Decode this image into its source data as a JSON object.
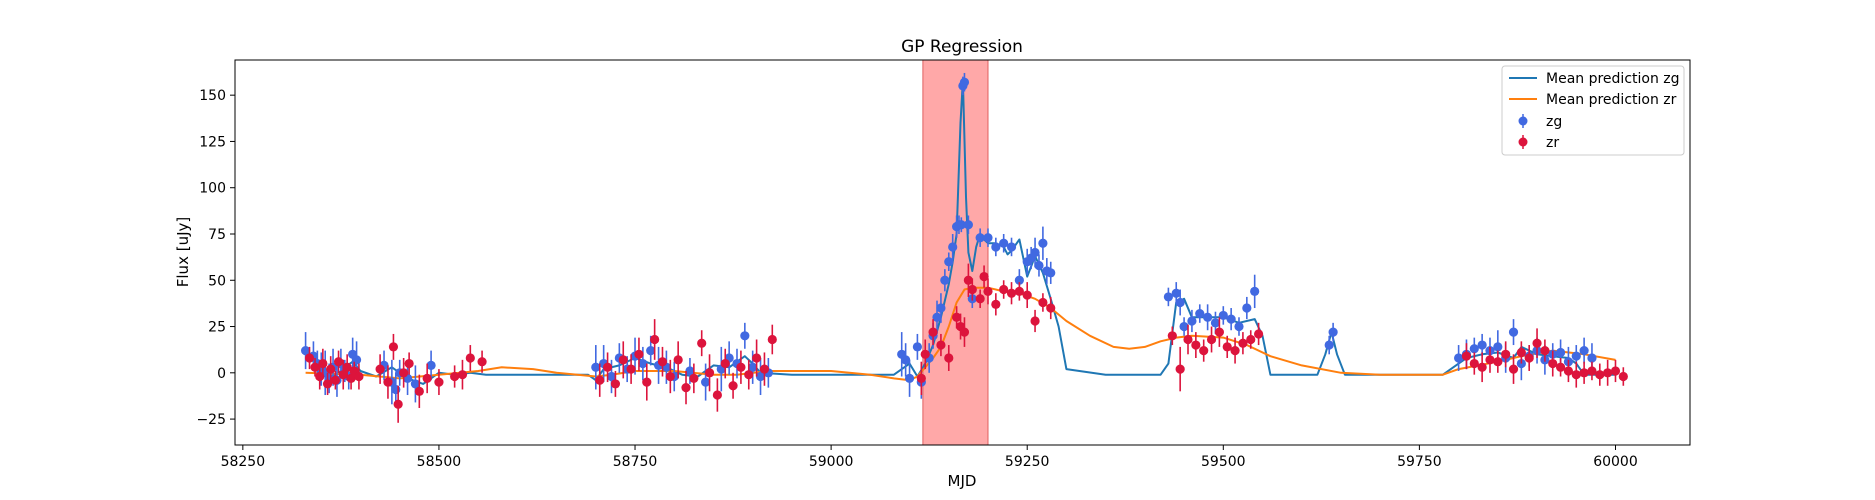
{
  "chart_data": {
    "type": "scatter",
    "title": "GP Regression",
    "xlabel": "MJD",
    "ylabel": "Flux [uJy]",
    "xlim": [
      58240,
      60095
    ],
    "ylim": [
      -39,
      169
    ],
    "xticks": [
      58250,
      58500,
      58750,
      59000,
      59250,
      59500,
      59750,
      60000
    ],
    "yticks": [
      -25,
      0,
      25,
      50,
      75,
      100,
      125,
      150
    ],
    "grid": false,
    "legend_position": "top-right",
    "highlight_span": {
      "x0": 59117,
      "x1": 59200,
      "color": "#ffa8a8"
    },
    "legend": [
      {
        "label": "Mean prediction zg",
        "kind": "line",
        "color": "#1f77b4"
      },
      {
        "label": "Mean prediction zr",
        "kind": "line",
        "color": "#ff7f0e"
      },
      {
        "label": "zg",
        "kind": "errorbar",
        "color": "#4169e1"
      },
      {
        "label": "zr",
        "kind": "errorbar",
        "color": "#dc143c"
      }
    ],
    "series": [
      {
        "name": "Mean prediction zg",
        "kind": "line",
        "color": "#1f77b4",
        "x": [
          58330,
          58340,
          58350,
          58360,
          58370,
          58380,
          58390,
          58400,
          58420,
          58440,
          58460,
          58480,
          58500,
          58520,
          58540,
          58560,
          58600,
          58650,
          58690,
          58700,
          58710,
          58730,
          58750,
          58770,
          58790,
          58810,
          58830,
          58850,
          58870,
          58890,
          58900,
          58910,
          58950,
          59000,
          59050,
          59080,
          59100,
          59110,
          59120,
          59130,
          59140,
          59150,
          59155,
          59160,
          59165,
          59168,
          59172,
          59175,
          59180,
          59185,
          59190,
          59195,
          59200,
          59210,
          59220,
          59225,
          59230,
          59240,
          59250,
          59260,
          59270,
          59280,
          59290,
          59300,
          59350,
          59400,
          59420,
          59430,
          59440,
          59450,
          59460,
          59480,
          59500,
          59520,
          59540,
          59550,
          59560,
          59580,
          59600,
          59620,
          59630,
          59638,
          59645,
          59655,
          59670,
          59700,
          59750,
          59780,
          59800,
          59810,
          59830,
          59850,
          59870,
          59880,
          59900,
          59920,
          59940,
          59950,
          59960,
          60000
        ],
        "y": [
          12,
          6,
          2,
          -2,
          -1,
          3,
          6,
          1,
          -2,
          3,
          -3,
          -6,
          0,
          -1,
          0,
          -1,
          -1,
          -1,
          -1,
          -4,
          2,
          4,
          8,
          5,
          3,
          -1,
          -2,
          4,
          3,
          9,
          5,
          0,
          -1,
          -1,
          -1,
          -1,
          5,
          -2,
          5,
          15,
          30,
          48,
          60,
          75,
          135,
          158,
          95,
          65,
          55,
          68,
          75,
          72,
          70,
          70,
          68,
          64,
          66,
          72,
          52,
          63,
          54,
          40,
          25,
          2,
          -1,
          -1,
          -1,
          5,
          38,
          40,
          30,
          30,
          30,
          27,
          29,
          20,
          -1,
          -1,
          -1,
          -1,
          10,
          22,
          10,
          -1,
          -1,
          -1,
          -1,
          -1,
          5,
          8,
          10,
          11,
          8,
          14,
          10,
          9,
          8,
          5,
          -1,
          -1
        ]
      },
      {
        "name": "Mean prediction zr",
        "kind": "line",
        "color": "#ff7f0e",
        "x": [
          58330,
          58400,
          58450,
          58500,
          58550,
          58580,
          58620,
          58650,
          58700,
          58720,
          58750,
          58800,
          58850,
          58880,
          58920,
          59000,
          59050,
          59080,
          59100,
          59110,
          59120,
          59130,
          59140,
          59150,
          59160,
          59170,
          59180,
          59200,
          59220,
          59240,
          59260,
          59280,
          59300,
          59330,
          59360,
          59380,
          59400,
          59420,
          59440,
          59460,
          59500,
          59530,
          59560,
          59600,
          59650,
          59700,
          59750,
          59780,
          59800,
          59850,
          59880,
          59920,
          59960,
          60000
        ],
        "y": [
          0,
          -1,
          -3,
          -1,
          1,
          3,
          2,
          0,
          -2,
          -1,
          1,
          1,
          -1,
          -1,
          1,
          1,
          -1,
          -3,
          -4,
          -2,
          3,
          8,
          14,
          25,
          38,
          45,
          46,
          46,
          44,
          43,
          40,
          35,
          28,
          20,
          14,
          13,
          14,
          17,
          19,
          20,
          19,
          15,
          9,
          4,
          0,
          -1,
          -1,
          -1,
          2,
          6,
          9,
          12,
          10,
          7
        ]
      },
      {
        "name": "zg",
        "kind": "errorbar",
        "color": "#4169e1",
        "x": [
          58330,
          58340,
          58345,
          58350,
          58355,
          58360,
          58365,
          58370,
          58375,
          58380,
          58385,
          58390,
          58395,
          58430,
          58440,
          58445,
          58450,
          58460,
          58470,
          58490,
          58700,
          58710,
          58720,
          58730,
          58740,
          58750,
          58760,
          58770,
          58780,
          58790,
          58800,
          58820,
          58840,
          58860,
          58870,
          58880,
          58890,
          58900,
          58910,
          58920,
          59090,
          59095,
          59100,
          59110,
          59115,
          59125,
          59130,
          59135,
          59140,
          59145,
          59150,
          59155,
          59160,
          59163,
          59166,
          59168,
          59170,
          59175,
          59180,
          59190,
          59200,
          59210,
          59220,
          59230,
          59240,
          59250,
          59255,
          59260,
          59265,
          59270,
          59275,
          59280,
          59430,
          59440,
          59445,
          59450,
          59460,
          59470,
          59480,
          59490,
          59500,
          59510,
          59520,
          59530,
          59540,
          59635,
          59640,
          59800,
          59810,
          59820,
          59830,
          59840,
          59850,
          59860,
          59870,
          59880,
          59890,
          59900,
          59910,
          59920,
          59930,
          59940,
          59950,
          59960,
          59970
        ],
        "y": [
          12,
          9,
          5,
          2,
          0,
          -3,
          3,
          -4,
          5,
          1,
          -2,
          10,
          7,
          4,
          -5,
          -9,
          0,
          -3,
          -6,
          4,
          3,
          5,
          -2,
          8,
          2,
          9,
          5,
          12,
          4,
          3,
          -2,
          1,
          -5,
          2,
          8,
          5,
          20,
          3,
          -2,
          0,
          10,
          7,
          -3,
          14,
          -5,
          8,
          20,
          30,
          35,
          50,
          60,
          68,
          79,
          80,
          80,
          155,
          157,
          80,
          40,
          73,
          73,
          68,
          70,
          68,
          50,
          60,
          62,
          65,
          58,
          70,
          55,
          54,
          41,
          43,
          38,
          25,
          28,
          32,
          30,
          27,
          31,
          29,
          25,
          35,
          44,
          15,
          22,
          8,
          10,
          13,
          15,
          12,
          14,
          8,
          22,
          5,
          9,
          12,
          7,
          10,
          11,
          6,
          9,
          12,
          8
        ],
        "err": [
          10,
          8,
          7,
          9,
          12,
          8,
          10,
          9,
          8,
          6,
          7,
          9,
          10,
          8,
          12,
          9,
          7,
          9,
          10,
          8,
          12,
          10,
          9,
          8,
          7,
          10,
          9,
          8,
          10,
          9,
          8,
          7,
          10,
          12,
          9,
          8,
          7,
          9,
          10,
          8,
          12,
          9,
          10,
          7,
          9,
          8,
          7,
          9,
          8,
          6,
          5,
          7,
          6,
          5,
          4,
          5,
          5,
          5,
          5,
          5,
          5,
          5,
          5,
          5,
          6,
          7,
          6,
          8,
          6,
          9,
          7,
          6,
          5,
          6,
          7,
          5,
          6,
          5,
          7,
          6,
          5,
          6,
          5,
          6,
          9,
          5,
          5,
          7,
          8,
          6,
          6,
          7,
          9,
          8,
          7,
          9,
          6,
          7,
          8,
          6,
          7,
          8,
          6,
          7,
          8
        ]
      },
      {
        "name": "zr",
        "kind": "errorbar",
        "color": "#dc143c",
        "x": [
          58335,
          58342,
          58348,
          58352,
          58358,
          58362,
          58368,
          58372,
          58378,
          58383,
          58388,
          58392,
          58398,
          58425,
          58435,
          58442,
          58448,
          58455,
          58462,
          58475,
          58485,
          58500,
          58520,
          58530,
          58540,
          58555,
          58705,
          58715,
          58725,
          58735,
          58745,
          58755,
          58765,
          58775,
          58785,
          58795,
          58805,
          58815,
          58825,
          58835,
          58845,
          58855,
          58865,
          58875,
          58885,
          58895,
          58905,
          58915,
          58925,
          59115,
          59120,
          59130,
          59140,
          59150,
          59160,
          59165,
          59170,
          59175,
          59180,
          59190,
          59195,
          59200,
          59210,
          59220,
          59230,
          59240,
          59250,
          59260,
          59270,
          59280,
          59435,
          59445,
          59455,
          59465,
          59475,
          59485,
          59495,
          59505,
          59515,
          59525,
          59535,
          59545,
          59810,
          59820,
          59830,
          59840,
          59850,
          59860,
          59870,
          59880,
          59890,
          59900,
          59910,
          59920,
          59930,
          59940,
          59950,
          59960,
          59970,
          59980,
          59990,
          60000,
          60010
        ],
        "y": [
          8,
          3,
          -2,
          5,
          -6,
          2,
          -4,
          6,
          -1,
          3,
          -3,
          1,
          -2,
          2,
          -5,
          14,
          -17,
          0,
          5,
          -10,
          -3,
          -5,
          -2,
          -1,
          8,
          6,
          -4,
          3,
          -6,
          7,
          2,
          10,
          -5,
          18,
          6,
          -2,
          7,
          -8,
          -3,
          16,
          0,
          -12,
          5,
          -7,
          3,
          -1,
          8,
          2,
          18,
          -3,
          10,
          22,
          15,
          8,
          30,
          25,
          22,
          50,
          45,
          40,
          52,
          44,
          37,
          45,
          43,
          44,
          42,
          28,
          38,
          35,
          20,
          2,
          18,
          15,
          12,
          18,
          22,
          14,
          12,
          16,
          18,
          21,
          9,
          5,
          3,
          7,
          6,
          10,
          2,
          11,
          8,
          16,
          12,
          5,
          3,
          1,
          -1,
          0,
          1,
          -1,
          0,
          1,
          -2
        ],
        "err": [
          6,
          5,
          7,
          8,
          6,
          7,
          5,
          6,
          8,
          7,
          6,
          5,
          7,
          8,
          9,
          7,
          10,
          8,
          6,
          9,
          8,
          7,
          6,
          8,
          7,
          6,
          9,
          8,
          7,
          10,
          8,
          9,
          10,
          11,
          8,
          9,
          10,
          9,
          8,
          7,
          10,
          9,
          8,
          7,
          9,
          8,
          10,
          9,
          8,
          9,
          8,
          7,
          6,
          7,
          6,
          7,
          8,
          9,
          6,
          5,
          6,
          7,
          6,
          5,
          6,
          5,
          7,
          6,
          5,
          6,
          5,
          12,
          8,
          7,
          6,
          7,
          8,
          6,
          7,
          6,
          5,
          6,
          7,
          6,
          8,
          7,
          6,
          7,
          8,
          6,
          7,
          8,
          6,
          7,
          5,
          6,
          7,
          6,
          5,
          6,
          7,
          6,
          5
        ]
      }
    ]
  }
}
